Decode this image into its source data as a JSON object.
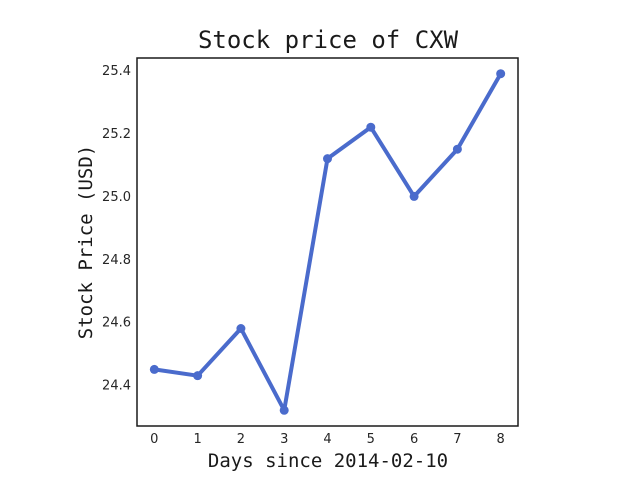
{
  "chart_data": {
    "type": "line",
    "title": "Stock price of CXW",
    "xlabel": "Days since 2014-02-10",
    "ylabel": "Stock Price (USD)",
    "x": [
      0,
      1,
      2,
      3,
      4,
      5,
      6,
      7,
      8
    ],
    "series": [
      {
        "values": [
          24.45,
          24.43,
          24.58,
          24.32,
          25.12,
          25.22,
          25.0,
          25.15,
          25.39
        ],
        "color": "#4a6bcc"
      }
    ],
    "xticks": [
      "0",
      "1",
      "2",
      "3",
      "4",
      "5",
      "6",
      "7",
      "8"
    ],
    "yticks": [
      "24.4",
      "24.6",
      "24.8",
      "25.0",
      "25.2",
      "25.4"
    ],
    "xlim": [
      -0.4,
      8.4
    ],
    "ylim": [
      24.27,
      25.44
    ],
    "grid": false
  }
}
